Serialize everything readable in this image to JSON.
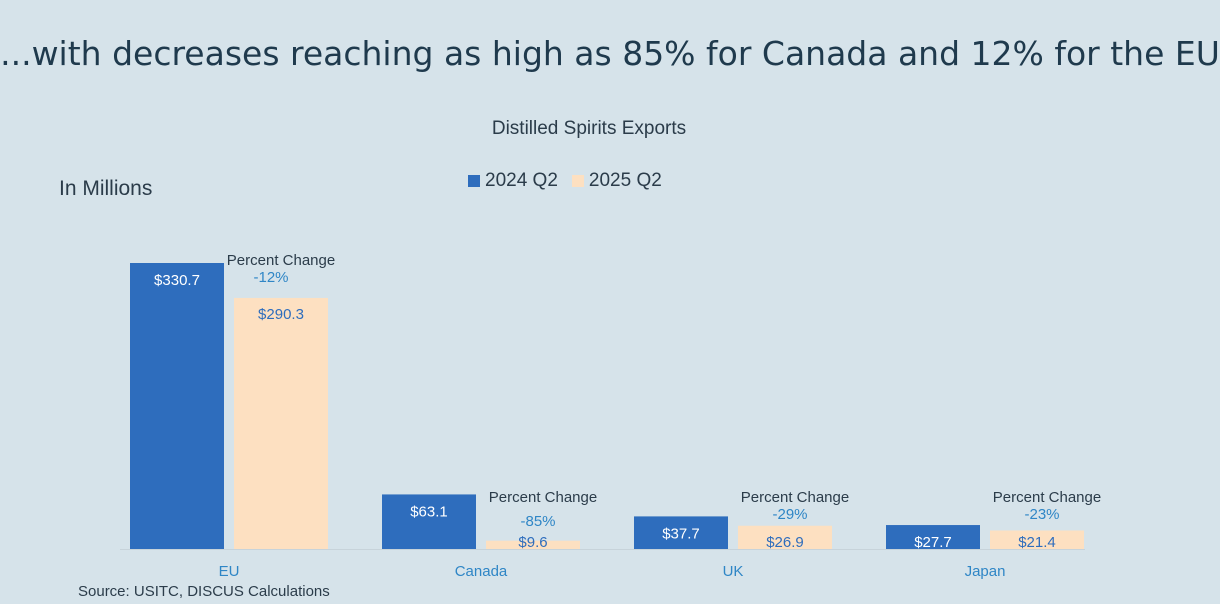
{
  "slide_title": "...with decreases reaching as high as 85% for Canada and 12% for the EU",
  "unit_label": "In Millions",
  "source": "Source: USITC, DISCUS Calculations",
  "colors": {
    "series_2024": "#2e6dbd",
    "series_2025": "#fde0c1",
    "label_2024": "#ffffff",
    "label_2025": "#2e6dbd",
    "category": "#2f86c6",
    "percent_value": "#2f86c6"
  },
  "chart_data": {
    "type": "bar",
    "title": "Distilled Spirits Exports",
    "xlabel": "",
    "ylabel": "In Millions",
    "ylim": [
      0,
      330.7
    ],
    "legend_position": "top-center",
    "categories": [
      "EU",
      "Canada",
      "UK",
      "Japan"
    ],
    "series": [
      {
        "name": "2024 Q2",
        "values": [
          330.7,
          63.1,
          37.7,
          27.7
        ],
        "labels": [
          "$330.7",
          "$63.1",
          "$37.7",
          "$27.7"
        ]
      },
      {
        "name": "2025 Q2",
        "values": [
          290.3,
          9.6,
          26.9,
          21.4
        ],
        "labels": [
          "$290.3",
          "$9.6",
          "$26.9",
          "$21.4"
        ]
      }
    ],
    "percent_change_label": "Percent Change",
    "percent_changes": [
      "-12%",
      "-85%",
      "-29%",
      "-23%"
    ]
  }
}
